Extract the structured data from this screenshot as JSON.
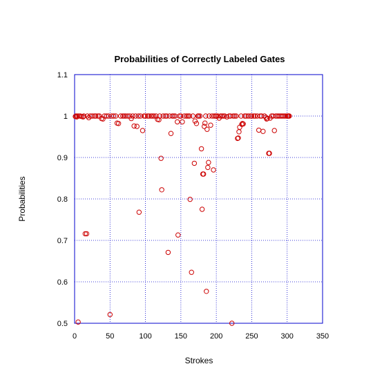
{
  "chart_data": {
    "type": "scatter",
    "title": "Probabilities of Correctly Labeled Gates",
    "xlabel": "Strokes",
    "ylabel": "Probabilities",
    "xlim": [
      0,
      350
    ],
    "ylim": [
      0.5,
      1.1
    ],
    "xticks": [
      "0",
      "50",
      "100",
      "150",
      "200",
      "250",
      "300",
      "350"
    ],
    "yticks": [
      "0.5",
      "0.6",
      "0.7",
      "0.8",
      "0.9",
      "1",
      "1.1"
    ],
    "grid": true,
    "marker_color": "#cc0000",
    "grid_color": "#0000cc",
    "series": [
      {
        "points": [
          [
            1,
            0.999
          ],
          [
            2,
            1
          ],
          [
            3,
            0.998
          ],
          [
            4,
            1
          ],
          [
            5,
            0.503
          ],
          [
            6,
            1
          ],
          [
            8,
            1
          ],
          [
            10,
            0.999
          ],
          [
            12,
            0.998
          ],
          [
            13,
            1
          ],
          [
            15,
            0.716
          ],
          [
            17,
            0.716
          ],
          [
            18,
            1
          ],
          [
            20,
            0.996
          ],
          [
            22,
            1
          ],
          [
            25,
            1
          ],
          [
            28,
            1
          ],
          [
            30,
            1
          ],
          [
            33,
            1
          ],
          [
            35,
            1
          ],
          [
            38,
            0.994
          ],
          [
            40,
            0.993
          ],
          [
            42,
            1
          ],
          [
            45,
            1
          ],
          [
            48,
            1
          ],
          [
            50,
            0.521
          ],
          [
            52,
            1
          ],
          [
            55,
            1
          ],
          [
            58,
            1
          ],
          [
            60,
            0.983
          ],
          [
            62,
            0.982
          ],
          [
            65,
            1
          ],
          [
            68,
            1
          ],
          [
            70,
            1
          ],
          [
            72,
            1
          ],
          [
            75,
            1
          ],
          [
            78,
            1
          ],
          [
            80,
            0.994
          ],
          [
            82,
            1
          ],
          [
            84,
            0.976
          ],
          [
            86,
            1
          ],
          [
            88,
            0.975
          ],
          [
            90,
            1
          ],
          [
            91,
            0.768
          ],
          [
            93,
            1
          ],
          [
            96,
            0.965
          ],
          [
            98,
            1
          ],
          [
            100,
            1
          ],
          [
            103,
            1
          ],
          [
            105,
            1
          ],
          [
            108,
            1
          ],
          [
            110,
            1
          ],
          [
            112,
            1
          ],
          [
            115,
            1
          ],
          [
            117,
            0.992
          ],
          [
            119,
            0.991
          ],
          [
            120,
            1
          ],
          [
            122,
            0.898
          ],
          [
            123,
            0.822
          ],
          [
            125,
            1
          ],
          [
            128,
            1
          ],
          [
            130,
            1
          ],
          [
            132,
            0.671
          ],
          [
            134,
            1
          ],
          [
            136,
            0.958
          ],
          [
            138,
            1
          ],
          [
            140,
            1
          ],
          [
            142,
            1
          ],
          [
            145,
            0.986
          ],
          [
            146,
            0.713
          ],
          [
            148,
            1
          ],
          [
            150,
            1
          ],
          [
            152,
            0.986
          ],
          [
            155,
            1
          ],
          [
            158,
            1
          ],
          [
            160,
            1
          ],
          [
            162,
            1
          ],
          [
            163,
            0.799
          ],
          [
            165,
            0.623
          ],
          [
            167,
            1
          ],
          [
            169,
            0.886
          ],
          [
            170,
            0.988
          ],
          [
            172,
            0.982
          ],
          [
            174,
            1
          ],
          [
            175,
            1
          ],
          [
            177,
            1
          ],
          [
            179,
            0.921
          ],
          [
            180,
            0.775
          ],
          [
            181,
            0.86
          ],
          [
            182,
            0.86
          ],
          [
            183,
            0.975
          ],
          [
            184,
            0.983
          ],
          [
            185,
            1
          ],
          [
            186,
            0.577
          ],
          [
            187,
            0.968
          ],
          [
            188,
            0.876
          ],
          [
            189,
            0.888
          ],
          [
            190,
            1
          ],
          [
            192,
            0.978
          ],
          [
            194,
            1
          ],
          [
            196,
            0.87
          ],
          [
            197,
            1
          ],
          [
            199,
            1
          ],
          [
            200,
            1
          ],
          [
            202,
            1
          ],
          [
            204,
            0.995
          ],
          [
            206,
            1
          ],
          [
            208,
            1
          ],
          [
            210,
            1
          ],
          [
            212,
            1
          ],
          [
            215,
            0.998
          ],
          [
            218,
            1
          ],
          [
            220,
            1
          ],
          [
            222,
            0.5
          ],
          [
            224,
            1
          ],
          [
            226,
            1
          ],
          [
            228,
            1
          ],
          [
            230,
            0.946
          ],
          [
            231,
            0.947
          ],
          [
            232,
            0.962
          ],
          [
            233,
            0.973
          ],
          [
            235,
            1
          ],
          [
            236,
            0.98
          ],
          [
            237,
            0.982
          ],
          [
            238,
            0.981
          ],
          [
            240,
            1
          ],
          [
            242,
            1
          ],
          [
            245,
            1
          ],
          [
            248,
            1
          ],
          [
            250,
            1
          ],
          [
            253,
            1
          ],
          [
            255,
            1
          ],
          [
            258,
            1
          ],
          [
            260,
            0.966
          ],
          [
            262,
            1
          ],
          [
            264,
            1
          ],
          [
            266,
            0.963
          ],
          [
            268,
            1
          ],
          [
            270,
            0.997
          ],
          [
            271,
            0.993
          ],
          [
            272,
            0.994
          ],
          [
            274,
            0.91
          ],
          [
            275,
            0.91
          ],
          [
            276,
            0.995
          ],
          [
            278,
            1
          ],
          [
            280,
            1
          ],
          [
            282,
            0.965
          ],
          [
            284,
            1
          ],
          [
            286,
            1
          ],
          [
            288,
            1
          ],
          [
            290,
            1
          ],
          [
            292,
            1
          ],
          [
            294,
            1
          ],
          [
            296,
            1
          ],
          [
            298,
            1
          ],
          [
            300,
            1
          ],
          [
            301,
            1
          ],
          [
            302,
            1
          ],
          [
            303,
            1
          ]
        ]
      }
    ]
  }
}
